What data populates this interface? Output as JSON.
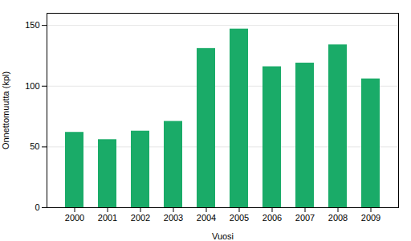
{
  "chart_data": {
    "type": "bar",
    "categories": [
      "2000",
      "2001",
      "2002",
      "2003",
      "2004",
      "2005",
      "2006",
      "2007",
      "2008",
      "2009"
    ],
    "values": [
      62,
      56,
      63,
      71,
      131,
      147,
      116,
      119,
      134,
      106
    ],
    "color": "#1aab68",
    "xlabel": "Vuosi",
    "ylabel": "Onnettomuutta (kpl)",
    "ylim": [
      0,
      160
    ],
    "yticks": [
      0,
      50,
      100,
      150
    ],
    "grid": true
  }
}
